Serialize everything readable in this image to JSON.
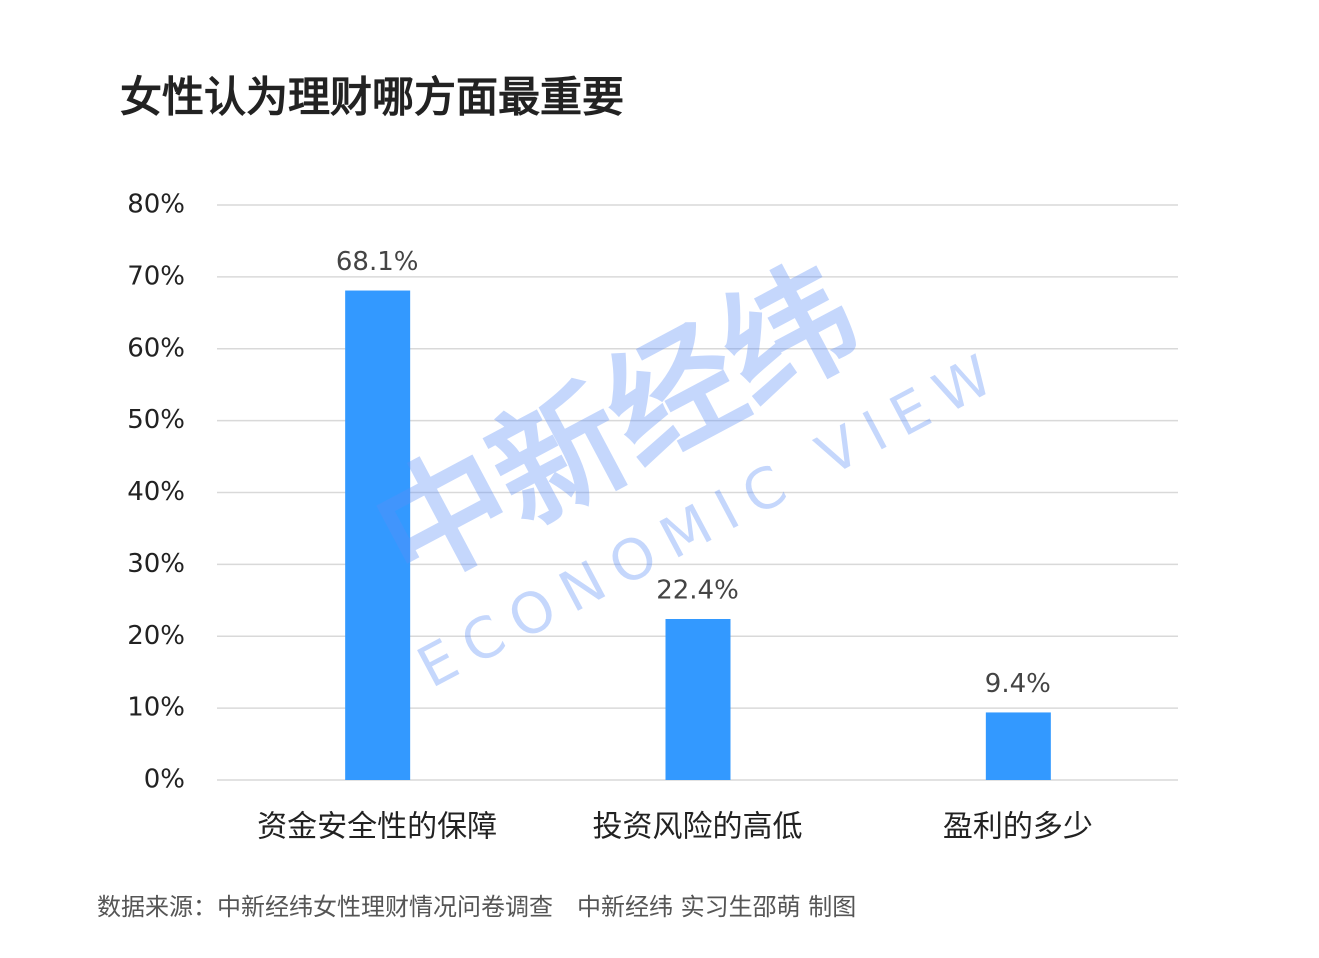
{
  "chart_data": {
    "type": "bar",
    "title": "女性认为理财哪方面最重要",
    "categories": [
      "资金安全性的保障",
      "投资风险的高低",
      "盈利的多少"
    ],
    "values": [
      68.1,
      22.4,
      9.4
    ],
    "value_labels": [
      "68.1%",
      "22.4%",
      "9.4%"
    ],
    "color": "#3399ff",
    "ylim": [
      0,
      80
    ],
    "yticks": [
      {
        "value": 0,
        "label": "0%"
      },
      {
        "value": 10,
        "label": "10%"
      },
      {
        "value": 20,
        "label": "20%"
      },
      {
        "value": 30,
        "label": "30%"
      },
      {
        "value": 40,
        "label": "40%"
      },
      {
        "value": 50,
        "label": "50%"
      },
      {
        "value": 60,
        "label": "60%"
      },
      {
        "value": 70,
        "label": "70%"
      },
      {
        "value": 80,
        "label": "80%"
      }
    ],
    "grid": true,
    "source": "数据来源：中新经纬女性理财情况问卷调查　中新经纬 实习生邵萌  制图",
    "watermark": {
      "logo": "中新经纬",
      "text": "ECONOMIC VIEW"
    }
  }
}
